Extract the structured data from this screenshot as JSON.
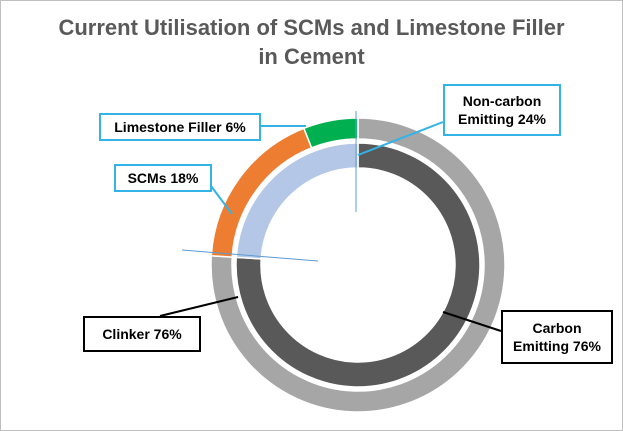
{
  "chart_data": {
    "type": "pie",
    "subtype": "nested-donut",
    "title_lines": [
      "Current Utilisation of SCMs and Limestone Filler",
      "in Cement"
    ],
    "rings": [
      {
        "ring": "outer",
        "slices": [
          {
            "label": "Clinker",
            "value": 76,
            "display": "Clinker  76%",
            "color": "#a6a6a6"
          },
          {
            "label": "SCMs",
            "value": 18,
            "display": "SCMs  18%",
            "color": "#ed7d31"
          },
          {
            "label": "Limestone Filler",
            "value": 6,
            "display": "Limestone Filler  6%",
            "color": "#00b050"
          }
        ]
      },
      {
        "ring": "inner",
        "slices": [
          {
            "label": "Carbon Emitting",
            "value": 76,
            "display_lines": [
              "Carbon",
              "Emitting 76%"
            ],
            "color": "#595959"
          },
          {
            "label": "Non-carbon Emitting",
            "value": 24,
            "display_lines": [
              "Non-carbon",
              "Emitting 24%"
            ],
            "color": "#b4c7e7"
          }
        ]
      }
    ],
    "callout_border_colors": {
      "outer_small_slices": "#33b3e6",
      "non_carbon": "#33b3e6",
      "large_slices": "#000000"
    }
  }
}
